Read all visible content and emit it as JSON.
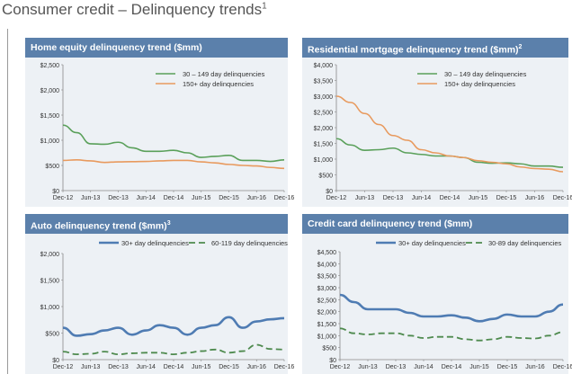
{
  "page_title": "Consumer credit – Delinquency trends",
  "page_title_footnote": "1",
  "chart_data": [
    {
      "type": "line",
      "title": "Home equity delinquency trend ($mm)",
      "x": [
        "Dec-12",
        "Mar-13",
        "Jun-13",
        "Sep-13",
        "Dec-13",
        "Mar-14",
        "Jun-14",
        "Sep-14",
        "Dec-14",
        "Mar-15",
        "Jun-15",
        "Sep-15",
        "Dec-15",
        "Mar-16",
        "Jun-16",
        "Sep-16",
        "Dec-16"
      ],
      "xticks": [
        "Dec-12",
        "Jun-13",
        "Dec-13",
        "Jun-14",
        "Dec-14",
        "Jun-15",
        "Dec-15",
        "Jun-16",
        "Dec-16"
      ],
      "ylim": [
        0,
        2500
      ],
      "yticks": [
        "$0",
        "$500",
        "$1,000",
        "$1,500",
        "$2,000",
        "$2,500"
      ],
      "legend": "top-right",
      "legend_layout": "stacked",
      "series": [
        {
          "name": "30 – 149 day delinquencies",
          "color": "#5aa05a",
          "style": "solid",
          "values": [
            1300,
            1150,
            930,
            920,
            960,
            850,
            780,
            780,
            800,
            750,
            660,
            680,
            700,
            600,
            600,
            580,
            610
          ]
        },
        {
          "name": "150+ day delinquencies",
          "color": "#e89a5e",
          "style": "solid",
          "values": [
            600,
            610,
            590,
            560,
            570,
            575,
            580,
            590,
            600,
            600,
            570,
            550,
            520,
            500,
            490,
            460,
            440
          ]
        }
      ]
    },
    {
      "type": "line",
      "title": "Residential mortgage delinquency trend ($mm)",
      "title_footnote": "2",
      "x": [
        "Dec-12",
        "Mar-13",
        "Jun-13",
        "Sep-13",
        "Dec-13",
        "Mar-14",
        "Jun-14",
        "Sep-14",
        "Dec-14",
        "Mar-15",
        "Jun-15",
        "Sep-15",
        "Dec-15",
        "Mar-16",
        "Jun-16",
        "Sep-16",
        "Dec-16"
      ],
      "xticks": [
        "Dec-12",
        "Jun-13",
        "Dec-13",
        "Jun-14",
        "Dec-14",
        "Jun-15",
        "Dec-15",
        "Jun-16",
        "Dec-16"
      ],
      "ylim": [
        0,
        4000
      ],
      "yticks": [
        "$0",
        "$500",
        "$1,000",
        "$1,500",
        "$2,000",
        "$2,500",
        "$3,000",
        "$3,500",
        "$4,000"
      ],
      "legend": "top-right",
      "legend_layout": "stacked",
      "series": [
        {
          "name": "30 – 149 day delinquencies",
          "color": "#5aa05a",
          "style": "solid",
          "values": [
            1650,
            1450,
            1280,
            1300,
            1350,
            1200,
            1150,
            1100,
            1100,
            1050,
            900,
            870,
            880,
            850,
            780,
            780,
            740
          ]
        },
        {
          "name": "150+ day delinquencies",
          "color": "#e89a5e",
          "style": "solid",
          "values": [
            3000,
            2800,
            2450,
            2100,
            1750,
            1600,
            1300,
            1200,
            1100,
            1050,
            950,
            900,
            850,
            750,
            700,
            680,
            600
          ]
        }
      ]
    },
    {
      "type": "line",
      "title": "Auto delinquency trend ($mm)",
      "title_footnote": "3",
      "x": [
        "Dec-12",
        "Mar-13",
        "Jun-13",
        "Sep-13",
        "Dec-13",
        "Mar-14",
        "Jun-14",
        "Sep-14",
        "Dec-14",
        "Mar-15",
        "Jun-15",
        "Sep-15",
        "Dec-15",
        "Mar-16",
        "Jun-16",
        "Sep-16",
        "Dec-16"
      ],
      "xticks": [
        "Dec-12",
        "Jun-13",
        "Dec-13",
        "Jun-14",
        "Dec-14",
        "Jun-15",
        "Dec-15",
        "Jun-16",
        "Dec-16"
      ],
      "ylim": [
        0,
        2000
      ],
      "yticks": [
        "$0",
        "$500",
        "$1,000",
        "$1,500",
        "$2,000"
      ],
      "legend": "top",
      "legend_layout": "inline",
      "series": [
        {
          "name": "30+ day delinquencies",
          "color": "#4f7cb3",
          "style": "thick",
          "values": [
            600,
            450,
            480,
            550,
            600,
            470,
            550,
            650,
            600,
            470,
            600,
            650,
            800,
            600,
            720,
            760,
            780
          ]
        },
        {
          "name": "60-119 day delinquencies",
          "color": "#4e8a4e",
          "style": "dashed",
          "values": [
            150,
            100,
            110,
            150,
            100,
            120,
            130,
            130,
            100,
            130,
            160,
            190,
            130,
            160,
            280,
            200,
            190
          ]
        }
      ]
    },
    {
      "type": "line",
      "title": "Credit card delinquency trend ($mm)",
      "x": [
        "Dec-12",
        "Mar-13",
        "Jun-13",
        "Sep-13",
        "Dec-13",
        "Mar-14",
        "Jun-14",
        "Sep-14",
        "Dec-14",
        "Mar-15",
        "Jun-15",
        "Sep-15",
        "Dec-15",
        "Mar-16",
        "Jun-16",
        "Sep-16",
        "Dec-16"
      ],
      "xticks": [
        "Dec-12",
        "Jun-13",
        "Dec-13",
        "Jun-14",
        "Dec-14",
        "Jun-15",
        "Dec-15",
        "Jun-16",
        "Dec-16"
      ],
      "ylim": [
        0,
        4500
      ],
      "yticks": [
        "$0",
        "$500",
        "$1,000",
        "$1,500",
        "$2,000",
        "$2,500",
        "$3,000",
        "$3,500",
        "$4,000",
        "$4,500"
      ],
      "legend": "top",
      "legend_layout": "inline",
      "series": [
        {
          "name": "30+ day delinquencies",
          "color": "#4f7cb3",
          "style": "thick",
          "values": [
            2700,
            2400,
            2100,
            2100,
            2100,
            1950,
            1800,
            1800,
            1850,
            1750,
            1600,
            1700,
            1880,
            1800,
            1800,
            2000,
            2300
          ]
        },
        {
          "name": "30-89 day delinquencies",
          "color": "#4e8a4e",
          "style": "dashed",
          "values": [
            1300,
            1100,
            1050,
            1100,
            1100,
            1000,
            900,
            950,
            950,
            850,
            800,
            850,
            950,
            900,
            880,
            1000,
            1150
          ]
        }
      ]
    }
  ]
}
